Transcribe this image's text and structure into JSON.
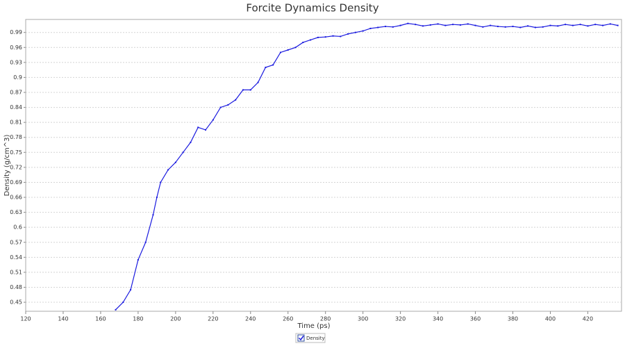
{
  "chart_data": {
    "type": "line",
    "title": "Forcite Dynamics Density",
    "x_label": "Time (ps)",
    "y_label": "Density (g/cm^3)",
    "x": [
      168,
      172,
      176,
      180,
      184,
      188,
      190,
      192,
      196,
      200,
      204,
      208,
      212,
      216,
      220,
      224,
      228,
      232,
      236,
      240,
      244,
      248,
      252,
      256,
      260,
      264,
      268,
      272,
      276,
      280,
      284,
      288,
      292,
      296,
      300,
      304,
      308,
      312,
      316,
      320,
      324,
      328,
      332,
      336,
      340,
      344,
      348,
      352,
      356,
      360,
      364,
      368,
      372,
      376,
      380,
      384,
      388,
      392,
      396,
      400,
      404,
      408,
      412,
      416,
      420,
      424,
      428,
      432,
      436
    ],
    "series": [
      {
        "name": "Density",
        "color": "#1a1adf",
        "values": [
          0.435,
          0.45,
          0.475,
          0.535,
          0.57,
          0.625,
          0.66,
          0.69,
          0.715,
          0.73,
          0.75,
          0.77,
          0.8,
          0.795,
          0.815,
          0.84,
          0.845,
          0.855,
          0.875,
          0.875,
          0.89,
          0.92,
          0.925,
          0.95,
          0.955,
          0.96,
          0.97,
          0.975,
          0.98,
          0.981,
          0.983,
          0.982,
          0.987,
          0.99,
          0.993,
          0.998,
          1.0,
          1.002,
          1.001,
          1.004,
          1.008,
          1.006,
          1.003,
          1.005,
          1.007,
          1.004,
          1.006,
          1.005,
          1.007,
          1.004,
          1.001,
          1.004,
          1.002,
          1.001,
          1.002,
          1.0,
          1.003,
          1.0,
          1.001,
          1.004,
          1.003,
          1.006,
          1.004,
          1.006,
          1.003,
          1.006,
          1.004,
          1.007,
          1.004
        ]
      }
    ],
    "xlim": [
      120,
      438
    ],
    "ylim": [
      0.432,
      1.016
    ],
    "xticks": [
      120,
      140,
      160,
      180,
      200,
      220,
      240,
      260,
      280,
      300,
      320,
      340,
      360,
      380,
      400,
      420
    ],
    "yticks": [
      0.45,
      0.48,
      0.51,
      0.54,
      0.57,
      0.6,
      0.63,
      0.66,
      0.69,
      0.72,
      0.75,
      0.78,
      0.81,
      0.84,
      0.87,
      0.9,
      0.93,
      0.96,
      0.99
    ],
    "grid": true
  }
}
